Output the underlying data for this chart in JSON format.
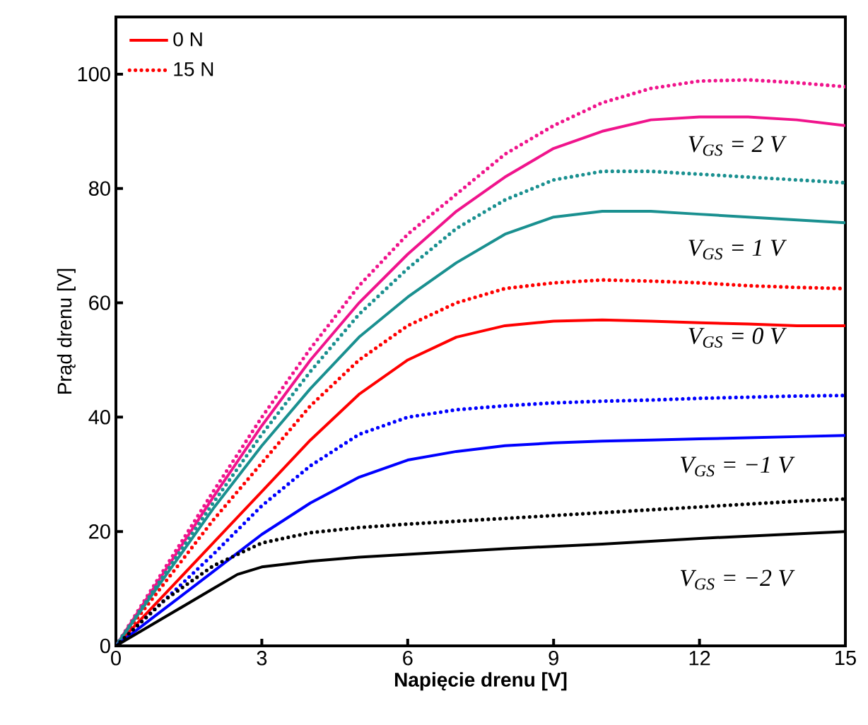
{
  "chart_data": {
    "type": "line",
    "xlabel": "Napięcie drenu [V]",
    "ylabel": "Prąd drenu [V]",
    "xlim": [
      0,
      15
    ],
    "ylim": [
      0,
      110
    ],
    "xticks": [
      0,
      3,
      6,
      9,
      12,
      15
    ],
    "yticks": [
      0,
      20,
      40,
      60,
      80,
      100
    ],
    "legend": "top left",
    "marker": "none",
    "grid": false,
    "series": [
      {
        "color": "#ff0000",
        "name": "0 N",
        "line_style": "solid",
        "x": [
          0,
          1,
          2,
          3,
          4,
          5,
          6,
          7,
          8,
          9,
          10,
          11,
          12,
          13,
          14,
          15
        ],
        "values": [
          0,
          9,
          18,
          27,
          36,
          44,
          50,
          54,
          56,
          56.8,
          57,
          56.8,
          56.5,
          56.3,
          56,
          56
        ]
      },
      {
        "color": "#ff0000",
        "name": "15 N",
        "line_style": "dotted",
        "x": [
          0,
          1,
          2,
          3,
          4,
          5,
          6,
          7,
          8,
          9,
          10,
          11,
          12,
          13,
          14,
          15
        ],
        "values": [
          0,
          11,
          22,
          32,
          42,
          50,
          56,
          60,
          62.5,
          63.5,
          64,
          63.8,
          63.5,
          63,
          62.7,
          62.5
        ]
      },
      {
        "color": "#f0148c",
        "line_style": "solid",
        "x": [
          0,
          1,
          2,
          3,
          4,
          5,
          6,
          7,
          8,
          9,
          10,
          11,
          12,
          13,
          14,
          15
        ],
        "values": [
          0,
          13,
          26,
          38.5,
          50,
          60,
          68.5,
          76,
          82,
          87,
          90,
          92,
          92.5,
          92.5,
          92,
          91
        ]
      },
      {
        "color": "#f0148c",
        "line_style": "dotted",
        "x": [
          0,
          1,
          2,
          3,
          4,
          5,
          6,
          7,
          8,
          9,
          10,
          11,
          12,
          13,
          14,
          15
        ],
        "values": [
          0,
          13.5,
          27,
          40,
          52,
          63,
          72,
          79,
          86,
          91,
          95,
          97.5,
          98.8,
          99,
          98.5,
          97.8
        ]
      },
      {
        "color": "#1a9090",
        "line_style": "solid",
        "x": [
          0,
          1,
          2,
          3,
          4,
          5,
          6,
          7,
          8,
          9,
          10,
          11,
          12,
          13,
          14,
          15
        ],
        "values": [
          0,
          12,
          24,
          35,
          45,
          54,
          61,
          67,
          72,
          75,
          76,
          76,
          75.5,
          75,
          74.5,
          74
        ]
      },
      {
        "color": "#1a9090",
        "line_style": "dotted",
        "x": [
          0,
          1,
          2,
          3,
          4,
          5,
          6,
          7,
          8,
          9,
          10,
          11,
          12,
          13,
          14,
          15
        ],
        "values": [
          0,
          12.5,
          25,
          37,
          48,
          58,
          66,
          73,
          78,
          81.5,
          83,
          83,
          82.5,
          82,
          81.5,
          81
        ]
      },
      {
        "color": "#0000ff",
        "line_style": "solid",
        "x": [
          0,
          1,
          2,
          3,
          4,
          5,
          6,
          7,
          8,
          9,
          10,
          11,
          12,
          13,
          14,
          15
        ],
        "values": [
          0,
          6.5,
          13,
          19.5,
          25,
          29.5,
          32.5,
          34,
          35,
          35.5,
          35.8,
          36,
          36.2,
          36.4,
          36.6,
          36.8
        ]
      },
      {
        "color": "#0000ff",
        "line_style": "dotted",
        "x": [
          0,
          1,
          2,
          3,
          4,
          5,
          6,
          7,
          8,
          9,
          10,
          11,
          12,
          13,
          14,
          15
        ],
        "values": [
          0,
          8,
          16,
          24.5,
          31.5,
          37,
          40,
          41.3,
          42,
          42.5,
          42.8,
          43,
          43.3,
          43.5,
          43.7,
          43.8
        ]
      },
      {
        "color": "#000000",
        "line_style": "solid",
        "x": [
          0,
          1,
          2,
          2.5,
          3,
          4,
          5,
          6,
          7,
          8,
          9,
          10,
          11,
          12,
          13,
          14,
          15
        ],
        "values": [
          0,
          5,
          10,
          12.5,
          13.8,
          14.8,
          15.5,
          16,
          16.5,
          17,
          17.4,
          17.8,
          18.3,
          18.8,
          19.2,
          19.6,
          20
        ]
      },
      {
        "color": "#000000",
        "line_style": "dotted",
        "x": [
          0,
          1,
          2,
          3,
          4,
          5,
          6,
          7,
          8,
          9,
          10,
          11,
          12,
          13,
          14,
          15
        ],
        "values": [
          0,
          8,
          14,
          18,
          19.8,
          20.7,
          21.3,
          21.8,
          22.3,
          22.8,
          23.3,
          23.8,
          24.3,
          24.8,
          25.3,
          25.7
        ]
      }
    ],
    "annotations": [
      "V$_{GS}$ =   2 V",
      "V$_{GS}$ =   1 V",
      "V$_{GS}$ =   0 V",
      "V$_{GS}$ = −1 V",
      "V$_{GS}$ = −2 V"
    ]
  }
}
